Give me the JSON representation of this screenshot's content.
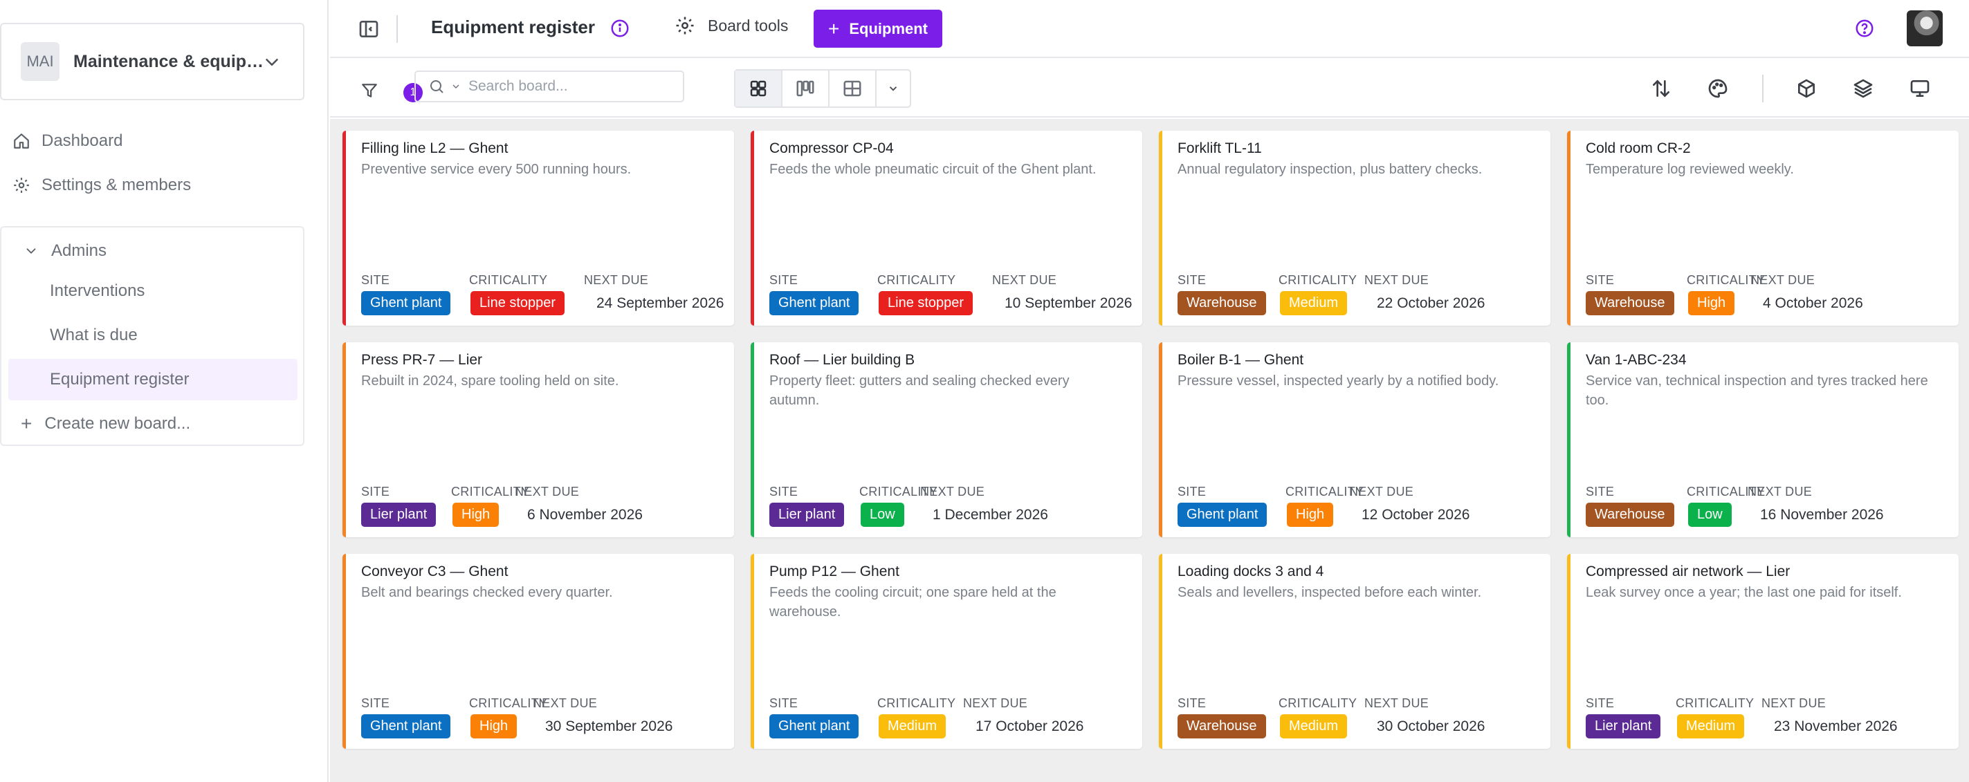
{
  "colors": {
    "accent": "#7b1fe8",
    "site": {
      "Ghent plant": "#0b6fc2",
      "Warehouse": "#a45421",
      "Lier plant": "#5b2a95"
    },
    "criticality": {
      "Line stopper": "#e8211e",
      "High": "#fb8106",
      "Medium": "#fbbd0b",
      "Low": "#0bb14a"
    },
    "border": {
      "red": "#e0262b",
      "orange": "#f28424",
      "amber": "#f8bd1c",
      "green": "#20b253"
    }
  },
  "sidebar": {
    "workspace": {
      "avatar": "MAI",
      "name": "Maintenance & equipment",
      "chevron_icon": "chevron-down-icon"
    },
    "nav": [
      {
        "label": "Dashboard",
        "icon": "home-icon"
      },
      {
        "label": "Settings & members",
        "icon": "gear-icon"
      }
    ],
    "group": {
      "label": "Admins",
      "boards": [
        "Interventions",
        "What is due",
        "Equipment register"
      ],
      "active": "Equipment register",
      "create_label": "Create new board..."
    }
  },
  "topbar": {
    "title": "Equipment register",
    "tools_label": "Board tools",
    "add_label": "Equipment"
  },
  "toolbar": {
    "filter_count": "1",
    "search_placeholder": "Search board..."
  },
  "cards_fields": {
    "site": "SITE",
    "criticality": "CRITICALITY",
    "next_due": "NEXT DUE"
  },
  "cards": [
    {
      "title": "Filling line L2 — Ghent",
      "desc": "Preventive service every 500 running hours.",
      "site": "Ghent plant",
      "criticality": "Line stopper",
      "next_due": "24 September 2026",
      "border": "red"
    },
    {
      "title": "Compressor CP-04",
      "desc": "Feeds the whole pneumatic circuit of the Ghent plant.",
      "site": "Ghent plant",
      "criticality": "Line stopper",
      "next_due": "10 September 2026",
      "border": "red"
    },
    {
      "title": "Forklift TL-11",
      "desc": "Annual regulatory inspection, plus battery checks.",
      "site": "Warehouse",
      "criticality": "Medium",
      "next_due": "22 October 2026",
      "border": "amber"
    },
    {
      "title": "Cold room CR-2",
      "desc": "Temperature log reviewed weekly.",
      "site": "Warehouse",
      "criticality": "High",
      "next_due": "4 October 2026",
      "border": "orange"
    },
    {
      "title": "Press PR-7 — Lier",
      "desc": "Rebuilt in 2024, spare tooling held on site.",
      "site": "Lier plant",
      "criticality": "High",
      "next_due": "6 November 2026",
      "border": "orange"
    },
    {
      "title": "Roof — Lier building B",
      "desc": "Property fleet: gutters and sealing checked every autumn.",
      "site": "Lier plant",
      "criticality": "Low",
      "next_due": "1 December 2026",
      "border": "green"
    },
    {
      "title": "Boiler B-1 — Ghent",
      "desc": "Pressure vessel, inspected yearly by a notified body.",
      "site": "Ghent plant",
      "criticality": "High",
      "next_due": "12 October 2026",
      "border": "orange"
    },
    {
      "title": "Van 1-ABC-234",
      "desc": "Service van, technical inspection and tyres tracked here too.",
      "site": "Warehouse",
      "criticality": "Low",
      "next_due": "16 November 2026",
      "border": "green"
    },
    {
      "title": "Conveyor C3 — Ghent",
      "desc": "Belt and bearings checked every quarter.",
      "site": "Ghent plant",
      "criticality": "High",
      "next_due": "30 September 2026",
      "border": "orange"
    },
    {
      "title": "Pump P12 — Ghent",
      "desc": "Feeds the cooling circuit; one spare held at the warehouse.",
      "site": "Ghent plant",
      "criticality": "Medium",
      "next_due": "17 October 2026",
      "border": "amber"
    },
    {
      "title": "Loading docks 3 and 4",
      "desc": "Seals and levellers, inspected before each winter.",
      "site": "Warehouse",
      "criticality": "Medium",
      "next_due": "30 October 2026",
      "border": "amber"
    },
    {
      "title": "Compressed air network — Lier",
      "desc": "Leak survey once a year; the last one paid for itself.",
      "site": "Lier plant",
      "criticality": "Medium",
      "next_due": "23 November 2026",
      "border": "amber"
    }
  ]
}
